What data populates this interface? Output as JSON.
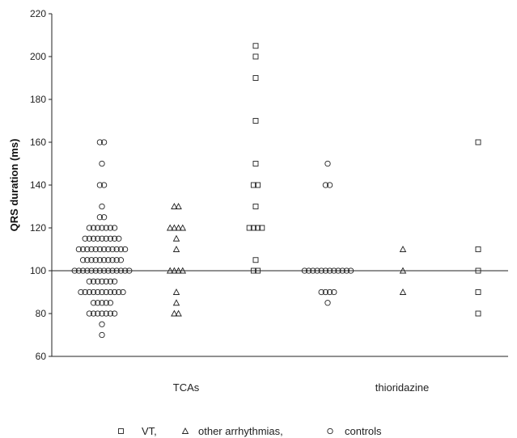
{
  "chart_data": {
    "type": "scatter",
    "title": "",
    "xlabel": "",
    "ylabel": "QRS duration (ms)",
    "ylim": [
      60,
      220
    ],
    "yticks": [
      60,
      80,
      100,
      120,
      140,
      160,
      180,
      200,
      220
    ],
    "reference_line": 100,
    "grid": false,
    "legend_position": "bottom-center",
    "groups": [
      {
        "label": "TCAs",
        "members": [
          "controls",
          "other arrhythmias",
          "VT"
        ]
      },
      {
        "label": "thioridazine",
        "members": [
          "controls",
          "other arrhythmias",
          "VT"
        ]
      }
    ],
    "series": [
      {
        "name": "VT,",
        "marker": "square",
        "values": [
          [
            205,
            200,
            190,
            170,
            150,
            140,
            140,
            130,
            120,
            120,
            120,
            120,
            105,
            100,
            100
          ],
          [
            160,
            110,
            100,
            90,
            80
          ]
        ]
      },
      {
        "name": "other arrhythmias,",
        "marker": "triangle",
        "values": [
          [
            130,
            130,
            120,
            120,
            120,
            120,
            115,
            110,
            100,
            100,
            100,
            100,
            90,
            85,
            80,
            80
          ],
          [
            110,
            100,
            90
          ]
        ]
      },
      {
        "name": "controls",
        "marker": "circle",
        "values": [
          [
            160,
            160,
            150,
            140,
            140,
            130,
            125,
            125,
            120,
            120,
            120,
            120,
            120,
            120,
            120,
            115,
            115,
            115,
            115,
            115,
            115,
            115,
            115,
            115,
            110,
            110,
            110,
            110,
            110,
            110,
            110,
            110,
            110,
            110,
            110,
            110,
            105,
            105,
            105,
            105,
            105,
            105,
            105,
            105,
            105,
            105,
            100,
            100,
            100,
            100,
            100,
            100,
            100,
            100,
            100,
            100,
            100,
            100,
            100,
            100,
            95,
            95,
            95,
            95,
            95,
            95,
            95,
            90,
            90,
            90,
            90,
            90,
            90,
            90,
            90,
            90,
            90,
            90,
            85,
            85,
            85,
            85,
            85,
            80,
            80,
            80,
            80,
            80,
            80,
            80,
            75,
            70
          ],
          [
            150,
            140,
            140,
            100,
            100,
            100,
            100,
            100,
            100,
            100,
            100,
            100,
            100,
            100,
            100,
            90,
            90,
            90,
            90,
            85
          ]
        ]
      }
    ]
  }
}
